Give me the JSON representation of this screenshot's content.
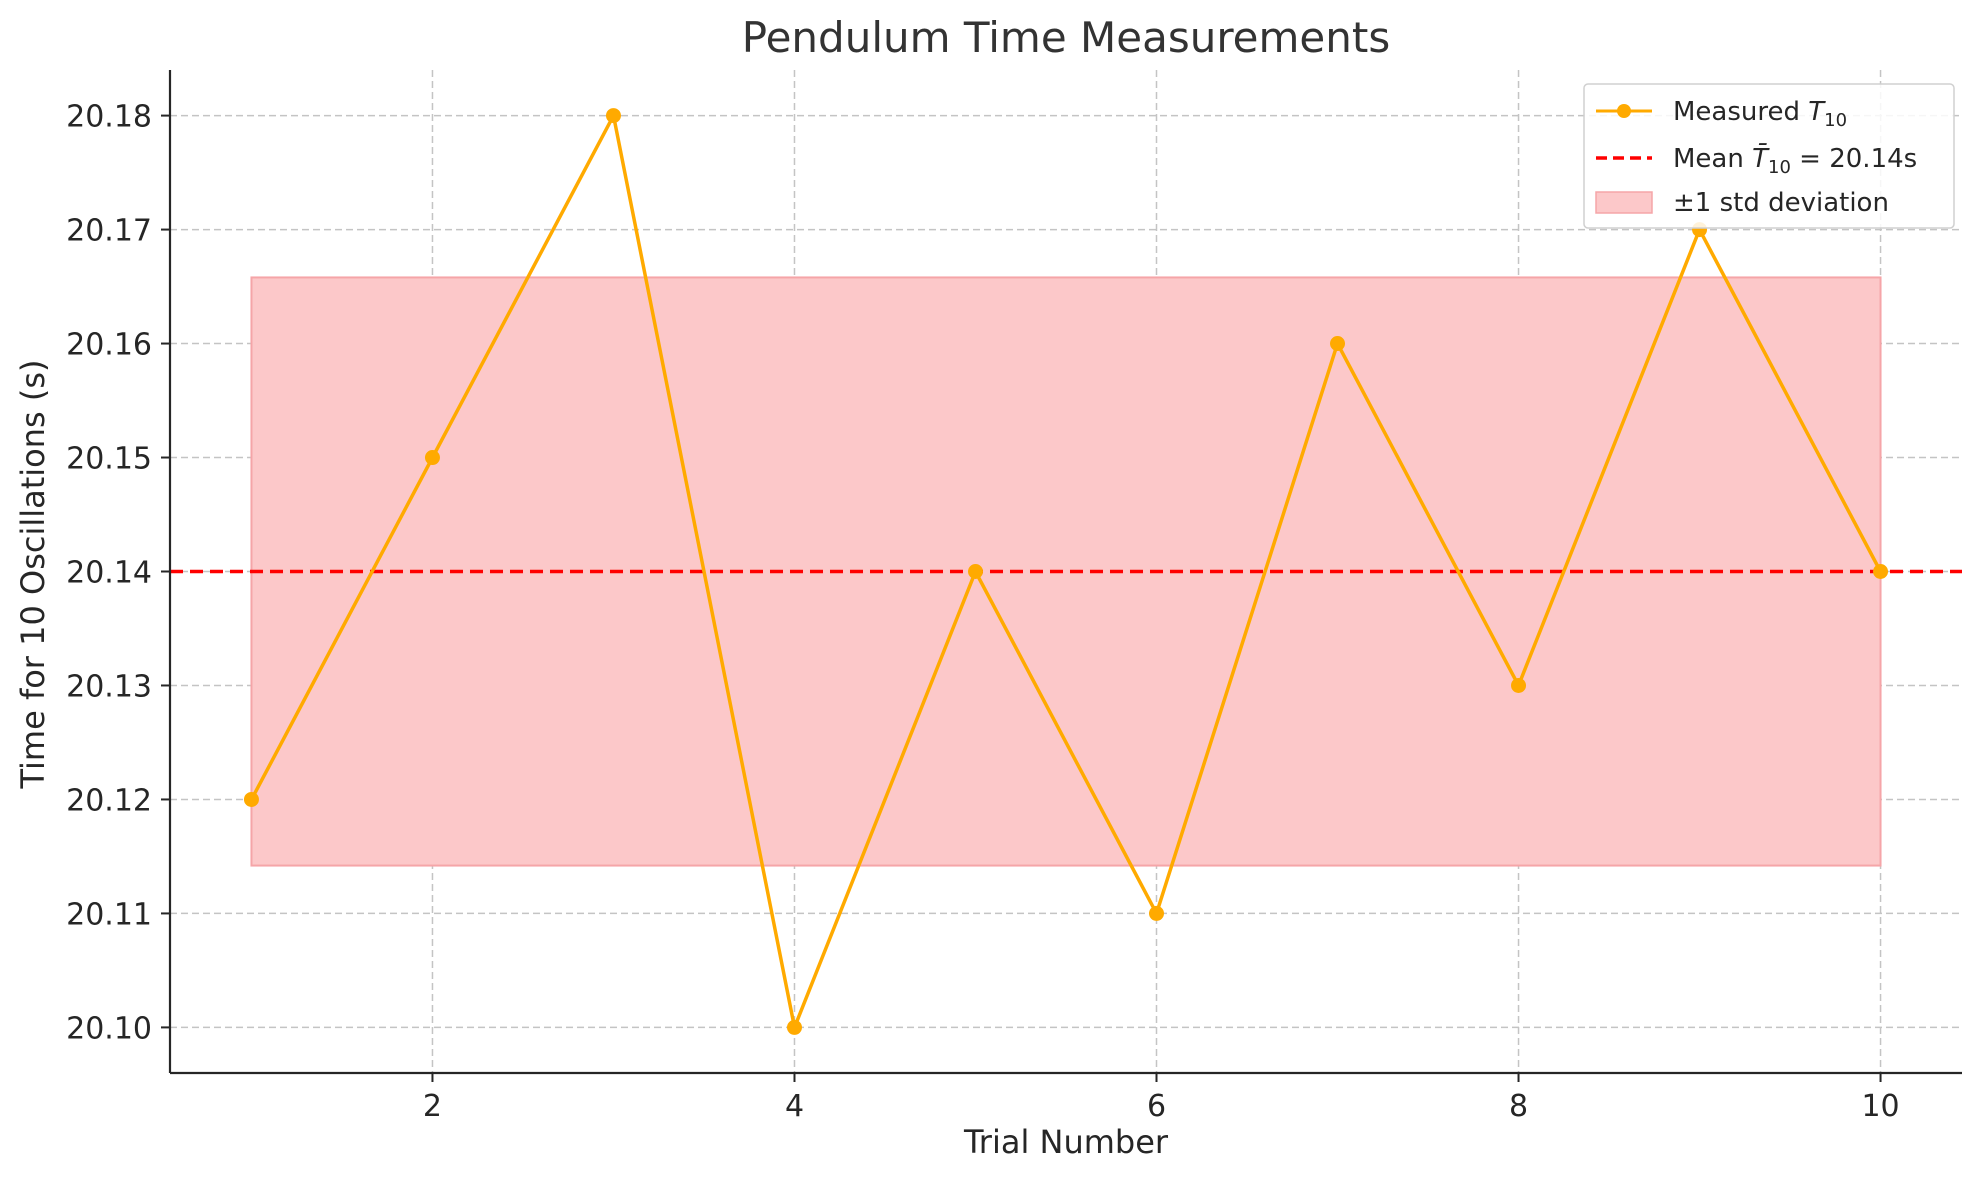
{
  "chart_data": {
    "type": "line",
    "title": "Pendulum Time Measurements",
    "xlabel": "Trial Number",
    "ylabel": "Time for 10 Oscillations (s)",
    "xlim": [
      0.55,
      10.45
    ],
    "ylim": [
      20.096,
      20.184
    ],
    "x_ticks": [
      2,
      4,
      6,
      8,
      10
    ],
    "y_ticks": [
      20.1,
      20.11,
      20.12,
      20.13,
      20.14,
      20.15,
      20.16,
      20.17,
      20.18
    ],
    "grid": true,
    "legend_position": "top-right",
    "series": [
      {
        "name": "Measured T10",
        "x": [
          1,
          2,
          3,
          4,
          5,
          6,
          7,
          8,
          9,
          10
        ],
        "values": [
          20.12,
          20.15,
          20.18,
          20.1,
          20.14,
          20.11,
          20.16,
          20.13,
          20.17,
          20.14
        ],
        "color": "#FFAA00"
      }
    ],
    "mean": {
      "value": 20.14,
      "color": "#FF0000",
      "legend": "Mean T̄10 = 20.14s"
    },
    "std_band": {
      "x_range": [
        1,
        10
      ],
      "low": 20.1142,
      "high": 20.1658,
      "color": "#FCC8C9",
      "edge_color": "#F5A5A8",
      "legend": "±1 std deviation"
    }
  }
}
